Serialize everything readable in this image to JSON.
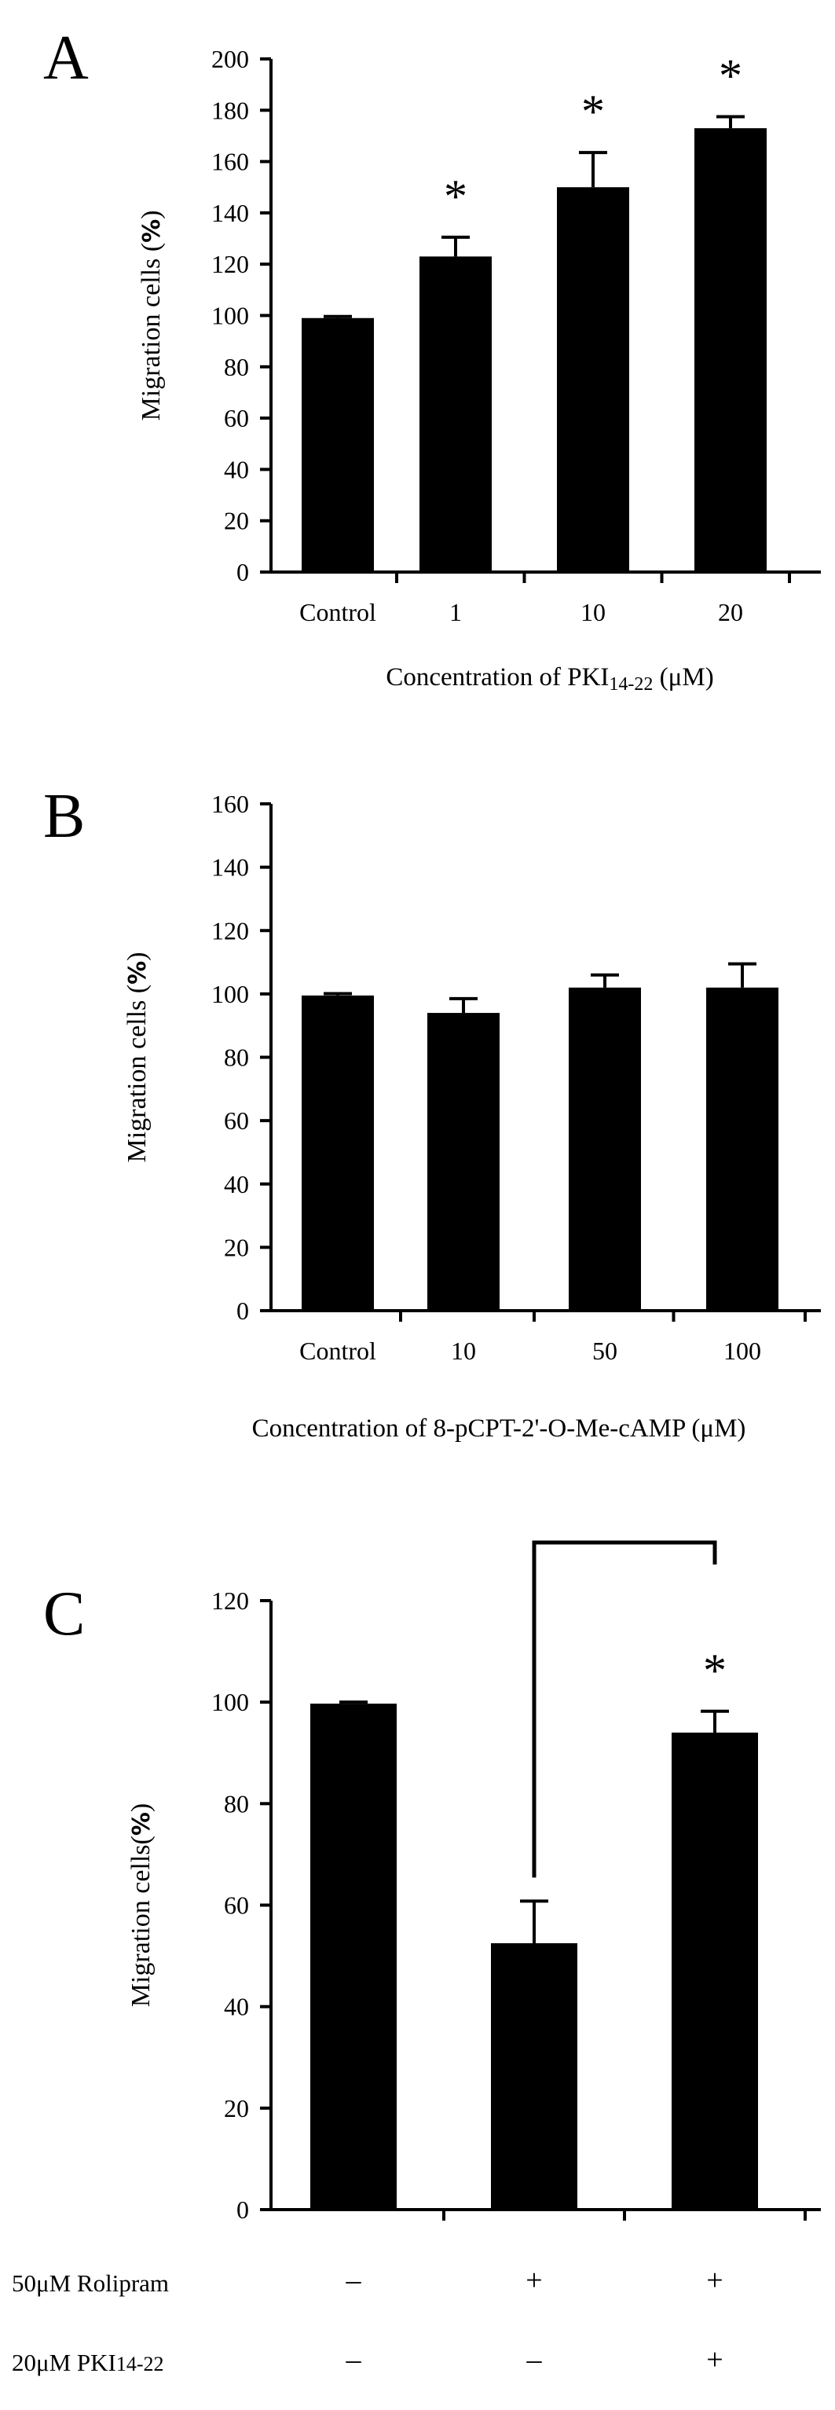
{
  "chart_data": [
    {
      "type": "bar",
      "panel_label": "A",
      "ylabel_text": "Migration cells (",
      "ylabel_unit": "%",
      "ylabel_close": ")",
      "xlabel_prefix": "Concentration of PKI",
      "xlabel_sub": "14-22",
      "xlabel_suffix": " (μM)",
      "ylim": [
        0,
        200
      ],
      "yticks": [
        0,
        20,
        40,
        60,
        80,
        100,
        120,
        140,
        160,
        180,
        200
      ],
      "categories": [
        "Control",
        "1",
        "10",
        "20"
      ],
      "values": [
        99,
        123,
        150,
        173
      ],
      "errors": [
        0.6,
        7.5,
        13.5,
        4.5
      ],
      "significance": [
        "",
        "*",
        "*",
        "*"
      ]
    },
    {
      "type": "bar",
      "panel_label": "B",
      "ylabel_text": "Migration cells (",
      "ylabel_unit": "%",
      "ylabel_close": ")",
      "xlabel_prefix": "Concentration of 8-pCPT-2'-O-Me-cAMP (μM)",
      "xlabel_sub": "",
      "xlabel_suffix": "",
      "ylim": [
        0,
        160
      ],
      "yticks": [
        0,
        20,
        40,
        60,
        80,
        100,
        120,
        140,
        160
      ],
      "categories": [
        "Control",
        "10",
        "50",
        "100"
      ],
      "values": [
        99.5,
        94,
        102,
        102
      ],
      "errors": [
        0.6,
        4.5,
        4,
        7.5
      ],
      "significance": [
        "",
        "",
        "",
        ""
      ]
    },
    {
      "type": "bar",
      "panel_label": "C",
      "ylabel_text": "Migration cells(",
      "ylabel_unit": "%",
      "ylabel_close": ")",
      "ylim": [
        0,
        120
      ],
      "yticks": [
        0,
        20,
        40,
        60,
        80,
        100,
        120
      ],
      "categories": [
        "",
        "",
        ""
      ],
      "values": [
        99.7,
        52.5,
        94
      ],
      "errors": [
        0.3,
        8.3,
        4.2
      ],
      "significance": [
        "",
        "",
        "*"
      ],
      "comparison_bracket": [
        1,
        2
      ],
      "treatment_rows": [
        {
          "label": "50μM Rolipram",
          "label_prefix": "50μM Rolipram",
          "label_sub": "",
          "marks": [
            "-",
            "+",
            "+"
          ]
        },
        {
          "label": "20μM PKI14-22",
          "label_prefix": "20μM PKI",
          "label_sub": "14-22",
          "marks": [
            "-",
            "-",
            "+"
          ]
        }
      ]
    }
  ]
}
